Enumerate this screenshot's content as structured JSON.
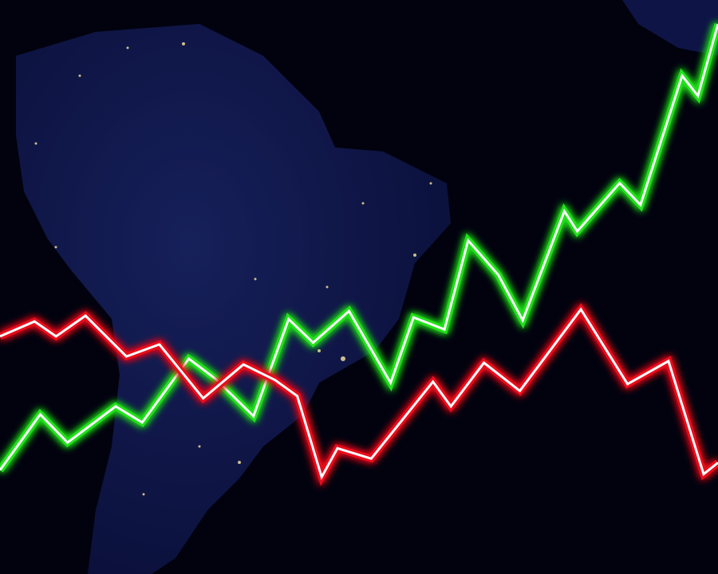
{
  "chart_data": {
    "type": "line",
    "xlim": [
      0,
      100
    ],
    "ylim": [
      0,
      100
    ],
    "series": [
      {
        "color": "#22e01a",
        "x": [
          0,
          5.6,
          9.4,
          16.1,
          19.8,
          26.3,
          30,
          35.3,
          40.2,
          43.6,
          48.6,
          54.4,
          57.6,
          61.9,
          65.2,
          69.4,
          72.8,
          78.6,
          80.4,
          86.3,
          89.2,
          95,
          97.2,
          100
        ],
        "values": [
          18.1,
          27.8,
          22.9,
          29.2,
          26.4,
          37.5,
          34.0,
          27.5,
          44.4,
          40.3,
          45.8,
          33.3,
          44.7,
          42.6,
          58.1,
          52.1,
          44.2,
          63.2,
          59.7,
          68.1,
          64.3,
          86.8,
          83.3,
          95.8
        ]
      },
      {
        "color": "#e8101a",
        "x": [
          0,
          4.8,
          7.8,
          11.9,
          17.6,
          22.2,
          28.3,
          33.9,
          38.3,
          41.4,
          44.8,
          47,
          51.7,
          60.3,
          62.8,
          67.4,
          72.4,
          80.9,
          87.4,
          93.1,
          98,
          100
        ],
        "values": [
          41.4,
          44.0,
          41.4,
          45.0,
          37.9,
          40.0,
          30.6,
          36.5,
          33.8,
          31.0,
          16.9,
          21.9,
          20.1,
          33.5,
          29.2,
          36.8,
          31.9,
          46.1,
          33.1,
          37.1,
          17.4,
          19.4
        ]
      }
    ]
  }
}
